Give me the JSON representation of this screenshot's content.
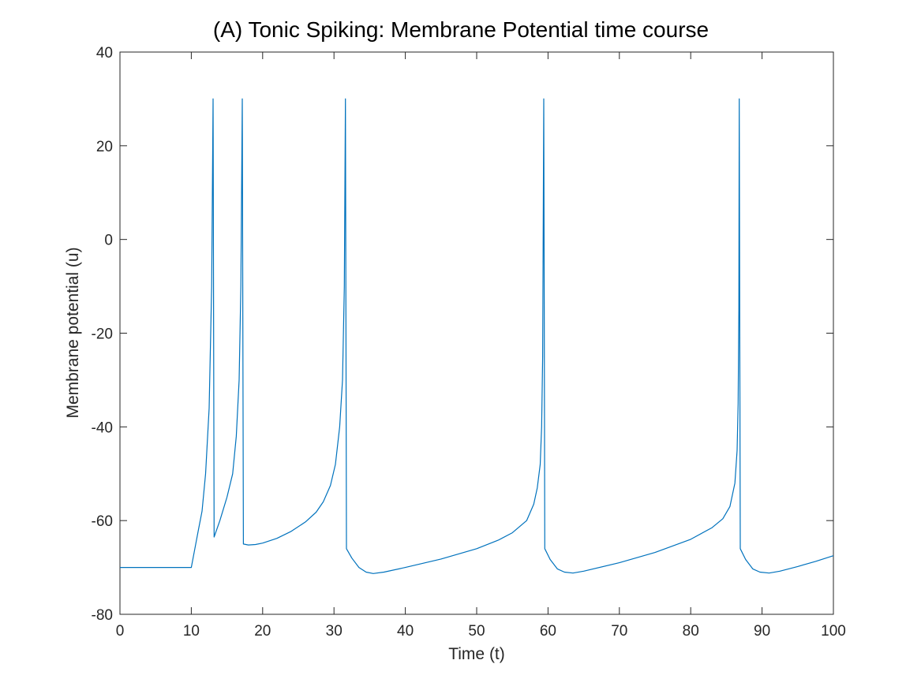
{
  "chart_data": {
    "type": "line",
    "title": "(A) Tonic Spiking: Membrane Potential time course",
    "xlabel": "Time (t)",
    "ylabel": "Membrane potential (u)",
    "xlim": [
      0,
      100
    ],
    "ylim": [
      -80,
      40
    ],
    "xticks": [
      0,
      10,
      20,
      30,
      40,
      50,
      60,
      70,
      80,
      90,
      100
    ],
    "yticks": [
      -80,
      -60,
      -40,
      -20,
      0,
      20,
      40
    ],
    "grid": false,
    "colors": {
      "line": "#0072BD"
    },
    "series": [
      {
        "values": [
          [
            0,
            -70
          ],
          [
            10,
            -70
          ],
          [
            10.5,
            -66
          ],
          [
            11,
            -62
          ],
          [
            11.5,
            -58
          ],
          [
            12,
            -50
          ],
          [
            12.5,
            -36
          ],
          [
            12.85,
            -10
          ],
          [
            13.05,
            30
          ],
          [
            13.2,
            -63.5
          ],
          [
            14,
            -60
          ],
          [
            15,
            -55
          ],
          [
            15.8,
            -50
          ],
          [
            16.3,
            -42
          ],
          [
            16.7,
            -30
          ],
          [
            16.95,
            -10
          ],
          [
            17.15,
            30
          ],
          [
            17.3,
            -65
          ],
          [
            18,
            -65.2
          ],
          [
            19,
            -65.1
          ],
          [
            20,
            -64.8
          ],
          [
            22,
            -63.8
          ],
          [
            24,
            -62.3
          ],
          [
            26,
            -60.3
          ],
          [
            27.5,
            -58.2
          ],
          [
            28.5,
            -56
          ],
          [
            29.5,
            -52.5
          ],
          [
            30.2,
            -48
          ],
          [
            30.8,
            -40
          ],
          [
            31.2,
            -30
          ],
          [
            31.45,
            -10
          ],
          [
            31.6,
            30
          ],
          [
            31.75,
            -66
          ],
          [
            32.5,
            -68
          ],
          [
            33.5,
            -70
          ],
          [
            34.5,
            -71
          ],
          [
            35.5,
            -71.3
          ],
          [
            37,
            -71
          ],
          [
            40,
            -70
          ],
          [
            45,
            -68.2
          ],
          [
            50,
            -66
          ],
          [
            53,
            -64.2
          ],
          [
            55,
            -62.6
          ],
          [
            57,
            -60
          ],
          [
            58,
            -56.5
          ],
          [
            58.5,
            -53
          ],
          [
            58.9,
            -48
          ],
          [
            59.1,
            -40
          ],
          [
            59.25,
            -25
          ],
          [
            59.4,
            30
          ],
          [
            59.55,
            -66
          ],
          [
            60.3,
            -68.3
          ],
          [
            61.3,
            -70.3
          ],
          [
            62.3,
            -71
          ],
          [
            63.5,
            -71.2
          ],
          [
            65,
            -70.8
          ],
          [
            70,
            -69
          ],
          [
            75,
            -66.8
          ],
          [
            80,
            -64
          ],
          [
            83,
            -61.5
          ],
          [
            84.5,
            -59.6
          ],
          [
            85.5,
            -57
          ],
          [
            86.2,
            -52
          ],
          [
            86.5,
            -45
          ],
          [
            86.65,
            -35
          ],
          [
            86.75,
            -15
          ],
          [
            86.8,
            30
          ],
          [
            86.95,
            -66
          ],
          [
            87.7,
            -68.3
          ],
          [
            88.7,
            -70.3
          ],
          [
            89.7,
            -71
          ],
          [
            91,
            -71.2
          ],
          [
            92.5,
            -70.8
          ],
          [
            95,
            -69.8
          ],
          [
            97.5,
            -68.7
          ],
          [
            100,
            -67.5
          ]
        ]
      }
    ]
  }
}
